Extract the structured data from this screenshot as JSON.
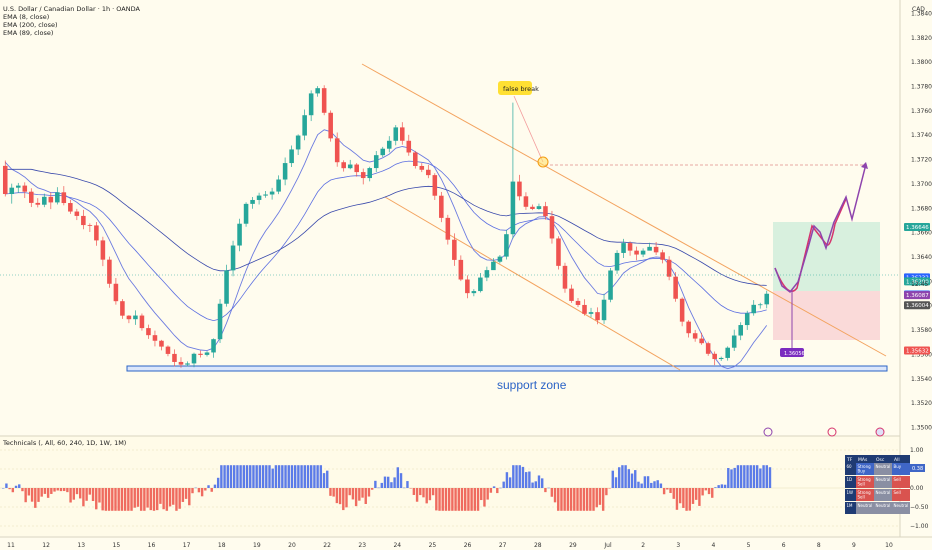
{
  "header": {
    "title": "U.S. Dollar / Canadian Dollar · 1h · OANDA",
    "indicators": [
      "EMA (8, close)",
      "EMA (200, close)",
      "EMA (89, close)"
    ],
    "currency": "CAD"
  },
  "annotations": {
    "false_break": "false break",
    "support_zone": "support zone",
    "countdown": "12:45",
    "target_badge": "1.36056"
  },
  "technicals": {
    "label": "Technicals (, All, 60, 240, 1D, 1W, 1M)",
    "table": {
      "headers": [
        "TF",
        "MAs",
        "Osc",
        "All"
      ],
      "rows": [
        [
          "60",
          "Strong Buy",
          "Neutral",
          "Buy"
        ],
        [
          "1D",
          "Strong Sell",
          "Neutral",
          "Sell"
        ],
        [
          "1W",
          "Strong Sell",
          "Neutral",
          "Sell"
        ],
        [
          "1M",
          "Neutral",
          "Neutral",
          "Neutral"
        ]
      ],
      "value_badge": "0.38"
    }
  },
  "chart_data": {
    "type": "candlestick",
    "price_axis": {
      "ticks": [
        1.384,
        1.382,
        1.38,
        1.378,
        1.376,
        1.374,
        1.372,
        1.37,
        1.368,
        1.366,
        1.364,
        1.362,
        1.36,
        1.358,
        1.356,
        1.354,
        1.352,
        1.35
      ],
      "tick_labels": [
        "1.38400",
        "1.38200",
        "1.38000",
        "1.37800",
        "1.37600",
        "1.37400",
        "1.37200",
        "1.37000",
        "1.36800",
        "1.36600",
        "1.36400",
        "1.36200",
        "1.36000",
        "1.35800",
        "1.35600",
        "1.35400",
        "1.35200",
        "1.35000"
      ],
      "range": [
        1.3493,
        1.3851
      ],
      "price_labels": [
        {
          "text": "1.36646",
          "value": 1.36646,
          "color": "#26a69a"
        },
        {
          "text": "1.36232",
          "value": 1.36232,
          "color": "#2962ff"
        },
        {
          "text": "1.36200",
          "value": 1.362,
          "color": "#26a69a"
        },
        {
          "text": "1.36092",
          "value": 1.36092,
          "color": "#2962ff"
        },
        {
          "text": "1.36087",
          "value": 1.36087,
          "color": "#8e44ad"
        },
        {
          "text": "1.36004",
          "value": 1.36004,
          "color": "#555555"
        },
        {
          "text": "1.35632",
          "value": 1.35632,
          "color": "#ef5350"
        }
      ]
    },
    "time_axis": {
      "labels": [
        "11",
        "12",
        "13",
        "15",
        "16",
        "17",
        "18",
        "19",
        "20",
        "22",
        "23",
        "24",
        "25",
        "26",
        "27",
        "28",
        "29",
        "Jul",
        "2",
        "3",
        "4",
        "5",
        "6",
        "8",
        "9",
        "10"
      ],
      "x_positions": [
        11,
        52,
        93,
        132,
        170,
        208,
        221,
        262,
        303,
        342,
        381,
        389,
        430,
        469,
        510,
        549,
        552,
        595,
        636,
        674,
        713,
        758,
        804,
        845,
        889
      ],
      "range": [
        0,
        240
      ]
    },
    "candles": [
      [
        1.37148,
        1.36917,
        1.37192,
        1.36897
      ],
      [
        1.36917,
        1.36969,
        1.37002,
        1.36838
      ],
      [
        1.36969,
        1.36986,
        1.37008,
        1.36926
      ],
      [
        1.36986,
        1.36936,
        1.37013,
        1.36884
      ],
      [
        1.36936,
        1.36844,
        1.36964,
        1.3681
      ],
      [
        1.36844,
        1.36829,
        1.36883,
        1.36807
      ],
      [
        1.36829,
        1.36894,
        1.3692,
        1.36809
      ],
      [
        1.36894,
        1.36848,
        1.3693,
        1.36793
      ],
      [
        1.36848,
        1.36931,
        1.36973,
        1.36831
      ],
      [
        1.36931,
        1.36843,
        1.36982,
        1.36824
      ],
      [
        1.36843,
        1.36773,
        1.36869,
        1.36754
      ],
      [
        1.36773,
        1.36737,
        1.36795,
        1.36703
      ],
      [
        1.36737,
        1.36662,
        1.36787,
        1.36628
      ],
      [
        1.36662,
        1.36659,
        1.36676,
        1.36605
      ],
      [
        1.36659,
        1.36536,
        1.36687,
        1.36492
      ],
      [
        1.36536,
        1.36378,
        1.36566,
        1.36325
      ],
      [
        1.36378,
        1.3618,
        1.36403,
        1.36147
      ],
      [
        1.3618,
        1.36037,
        1.36227,
        1.36009
      ],
      [
        1.36037,
        1.35918,
        1.36054,
        1.35892
      ],
      [
        1.35918,
        1.35889,
        1.35923,
        1.35857
      ],
      [
        1.35889,
        1.35919,
        1.35962,
        1.35842
      ],
      [
        1.35919,
        1.35816,
        1.35936,
        1.35795
      ],
      [
        1.35816,
        1.35758,
        1.35844,
        1.35727
      ],
      [
        1.35758,
        1.35712,
        1.35795,
        1.35666
      ],
      [
        1.35712,
        1.35664,
        1.35719,
        1.35633
      ],
      [
        1.35664,
        1.35604,
        1.35674,
        1.35585
      ],
      [
        1.35604,
        1.35538,
        1.35641,
        1.35501
      ],
      [
        1.35538,
        1.35516,
        1.35577,
        1.3549
      ],
      [
        1.35516,
        1.35526,
        1.35543,
        1.35502
      ],
      [
        1.35526,
        1.35605,
        1.35615,
        1.35495
      ],
      [
        1.35605,
        1.35596,
        1.35631,
        1.35575
      ],
      [
        1.35596,
        1.35616,
        1.35627,
        1.35583
      ],
      [
        1.35616,
        1.35725,
        1.35732,
        1.35572
      ],
      [
        1.35725,
        1.36016,
        1.36054,
        1.35694
      ],
      [
        1.36016,
        1.3629,
        1.36336,
        1.35992
      ],
      [
        1.3629,
        1.36494,
        1.36533,
        1.36242
      ],
      [
        1.36494,
        1.36673,
        1.36714,
        1.36447
      ],
      [
        1.36673,
        1.36836,
        1.36849,
        1.36648
      ],
      [
        1.36836,
        1.36868,
        1.36892,
        1.36796
      ],
      [
        1.36868,
        1.36904,
        1.36927,
        1.36831
      ],
      [
        1.36904,
        1.36913,
        1.36942,
        1.36886
      ],
      [
        1.36913,
        1.36937,
        1.36967,
        1.36871
      ],
      [
        1.36937,
        1.37036,
        1.3707,
        1.36916
      ],
      [
        1.37036,
        1.37171,
        1.37217,
        1.36989
      ],
      [
        1.37171,
        1.37283,
        1.37315,
        1.37139
      ],
      [
        1.37283,
        1.37397,
        1.37407,
        1.37237
      ],
      [
        1.37397,
        1.37564,
        1.37611,
        1.37358
      ],
      [
        1.37564,
        1.37743,
        1.37768,
        1.37516
      ],
      [
        1.37743,
        1.37786,
        1.37803,
        1.37716
      ],
      [
        1.37786,
        1.37584,
        1.3781,
        1.37564
      ],
      [
        1.37584,
        1.37374,
        1.37603,
        1.37347
      ],
      [
        1.37374,
        1.37178,
        1.37422,
        1.37141
      ],
      [
        1.37178,
        1.37129,
        1.37194,
        1.37101
      ],
      [
        1.37129,
        1.37159,
        1.37197,
        1.3712
      ],
      [
        1.37159,
        1.37097,
        1.37171,
        1.3706
      ],
      [
        1.37097,
        1.37048,
        1.37126,
        1.36996
      ],
      [
        1.37048,
        1.3713,
        1.37141,
        1.37021
      ],
      [
        1.3713,
        1.37236,
        1.3727,
        1.37097
      ],
      [
        1.37236,
        1.37289,
        1.37304,
        1.37221
      ],
      [
        1.37289,
        1.37354,
        1.37392,
        1.37259
      ],
      [
        1.37354,
        1.37464,
        1.37483,
        1.37317
      ],
      [
        1.37464,
        1.37354,
        1.37507,
        1.37322
      ],
      [
        1.37354,
        1.37258,
        1.37403,
        1.37231
      ],
      [
        1.37258,
        1.37147,
        1.37271,
        1.37126
      ],
      [
        1.37147,
        1.37116,
        1.37171,
        1.37097
      ],
      [
        1.37116,
        1.37072,
        1.37157,
        1.37047
      ],
      [
        1.37072,
        1.36903,
        1.37088,
        1.36868
      ],
      [
        1.36903,
        1.36721,
        1.36934,
        1.36686
      ],
      [
        1.36721,
        1.36542,
        1.36746,
        1.36502
      ],
      [
        1.36542,
        1.36376,
        1.36594,
        1.36327
      ],
      [
        1.36376,
        1.36215,
        1.36413,
        1.36202
      ],
      [
        1.36215,
        1.36103,
        1.36249,
        1.36061
      ],
      [
        1.36103,
        1.3612,
        1.36136,
        1.36077
      ],
      [
        1.3612,
        1.36231,
        1.36268,
        1.36108
      ],
      [
        1.36231,
        1.36292,
        1.36321,
        1.36202
      ],
      [
        1.36292,
        1.36361,
        1.36391,
        1.36307
      ],
      [
        1.36361,
        1.36403,
        1.36416,
        1.36347
      ],
      [
        1.36403,
        1.36587,
        1.36622,
        1.36379
      ],
      [
        1.36587,
        1.37019,
        1.37667,
        1.36553
      ],
      [
        1.37019,
        1.36898,
        1.37074,
        1.36865
      ],
      [
        1.36898,
        1.36812,
        1.36931,
        1.36787
      ],
      [
        1.36812,
        1.36794,
        1.36831,
        1.36785
      ],
      [
        1.36794,
        1.36817,
        1.36838,
        1.36788
      ],
      [
        1.36817,
        1.36735,
        1.36852,
        1.36707
      ],
      [
        1.36735,
        1.36552,
        1.36779,
        1.3651
      ],
      [
        1.36552,
        1.36327,
        1.3657,
        1.36297
      ],
      [
        1.36327,
        1.3614,
        1.36353,
        1.36106
      ],
      [
        1.3614,
        1.36039,
        1.36173,
        1.36023
      ],
      [
        1.36039,
        1.36006,
        1.36063,
        1.35988
      ],
      [
        1.36006,
        1.35933,
        1.36053,
        1.35918
      ],
      [
        1.35933,
        1.35947,
        1.35982,
        1.35905
      ],
      [
        1.35947,
        1.35881,
        1.35986,
        1.35848
      ],
      [
        1.35881,
        1.36049,
        1.36098,
        1.35851
      ],
      [
        1.36049,
        1.36289,
        1.36309,
        1.36028
      ],
      [
        1.36289,
        1.36433,
        1.36455,
        1.36261
      ],
      [
        1.36433,
        1.36514,
        1.36549,
        1.36392
      ],
      [
        1.36514,
        1.36452,
        1.36528,
        1.3641
      ],
      [
        1.36452,
        1.3642,
        1.36485,
        1.36373
      ],
      [
        1.3642,
        1.36452,
        1.36471,
        1.36399
      ],
      [
        1.36452,
        1.36483,
        1.36517,
        1.36454
      ],
      [
        1.36483,
        1.36438,
        1.36523,
        1.36416
      ],
      [
        1.36438,
        1.36377,
        1.36459,
        1.36347
      ],
      [
        1.36377,
        1.36238,
        1.36406,
        1.36209
      ],
      [
        1.36238,
        1.36057,
        1.36276,
        1.36032
      ],
      [
        1.36057,
        1.35869,
        1.36068,
        1.35831
      ],
      [
        1.35869,
        1.35774,
        1.35881,
        1.35739
      ],
      [
        1.35774,
        1.3573,
        1.35801,
        1.35704
      ],
      [
        1.3573,
        1.35692,
        1.35778,
        1.35679
      ],
      [
        1.35692,
        1.35605,
        1.35705,
        1.35588
      ],
      [
        1.35605,
        1.35562,
        1.35624,
        1.35512
      ],
      [
        1.35562,
        1.35571,
        1.35582,
        1.35546
      ],
      [
        1.35571,
        1.35655,
        1.35666,
        1.35549
      ],
      [
        1.35655,
        1.35755,
        1.35803,
        1.35628
      ],
      [
        1.35755,
        1.35841,
        1.35864,
        1.35717
      ],
      [
        1.35841,
        1.35938,
        1.35958,
        1.35801
      ],
      [
        1.35938,
        1.36007,
        1.36046,
        1.35918
      ],
      [
        1.36007,
        1.36011,
        1.36024,
        1.35976
      ],
      [
        1.36011,
        1.36098,
        1.36123,
        1.35979
      ]
    ],
    "ema_8": [
      1.37177,
      1.3712,
      1.37091,
      1.37056,
      1.37007,
      1.36968,
      1.36951,
      1.36928,
      1.36929,
      1.36912,
      1.36882,
      1.36849,
      1.36807,
      1.36774,
      1.36721,
      1.36645,
      1.36541,
      1.36429,
      1.36316,
      1.36221,
      1.36153,
      1.36078,
      1.36007,
      1.35941,
      1.35879,
      1.35818,
      1.35755,
      1.35702,
      1.35663,
      1.35649,
      1.35636,
      1.35631,
      1.35652,
      1.35732,
      1.35856,
      1.35998,
      1.36149,
      1.3629,
      1.36418,
      1.36527,
      1.36613,
      1.36685,
      1.36763,
      1.36852,
      1.36949,
      1.37052,
      1.37165,
      1.37293,
      1.37404,
      1.37444,
      1.37429,
      1.37374,
      1.37318,
      1.37282,
      1.3724,
      1.37195,
      1.3718,
      1.37192,
      1.37214,
      1.37245,
      1.37293,
      1.37307,
      1.37296,
      1.37264,
      1.37231,
      1.37196,
      1.37131,
      1.37039,
      1.36928,
      1.36805,
      1.36675,
      1.36549,
      1.36454,
      1.36402,
      1.36376,
      1.36373,
      1.36382,
      1.36427,
      1.36558,
      1.36634,
      1.36673,
      1.36699,
      1.36729,
      1.36731,
      1.36692,
      1.36611,
      1.36506,
      1.36403,
      1.36314,
      1.36229,
      1.36166,
      1.36101,
      1.36089,
      1.36133,
      1.36199,
      1.36268,
      1.36309,
      1.36333,
      1.3636,
      1.3639,
      1.36401,
      1.36395,
      1.36338,
      1.36243,
      1.36116,
      1.35984,
      1.35872,
      1.35765,
      1.35662,
      1.35573,
      1.35503,
      1.35483,
      1.35499,
      1.35542,
      1.35617,
      1.35698,
      1.35767,
      1.35838
    ]
  }
}
